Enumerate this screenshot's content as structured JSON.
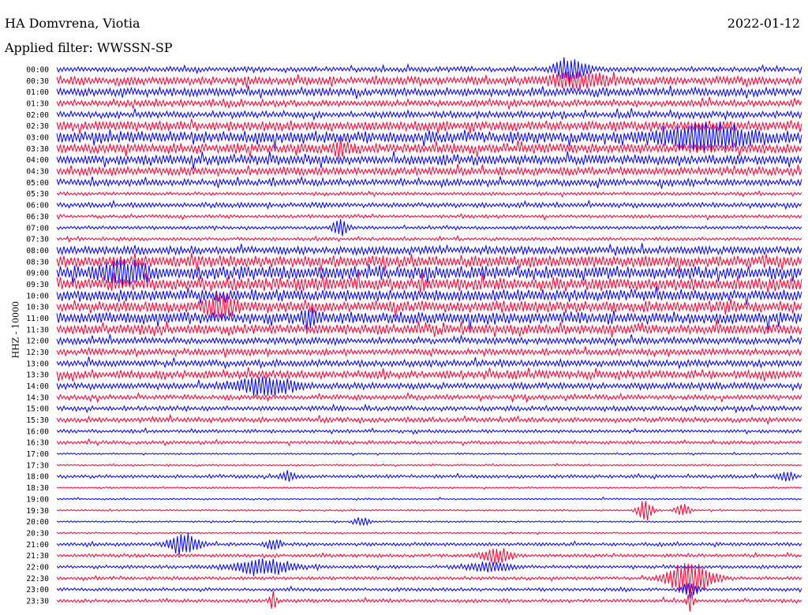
{
  "header": {
    "station": "HA Domvrena, Viotia",
    "date": "2022-01-12",
    "filter": "Applied filter: WWSSN-SP"
  },
  "chart_data": {
    "type": "line",
    "title": "",
    "ylabel": "HHZ - 10000",
    "row_labels": [
      "00:00",
      "00:30",
      "01:00",
      "01:30",
      "02:00",
      "02:30",
      "03:00",
      "03:30",
      "04:00",
      "04:30",
      "05:00",
      "05:30",
      "06:00",
      "06:30",
      "07:00",
      "07:30",
      "08:00",
      "08:30",
      "09:00",
      "09:30",
      "10:00",
      "10:30",
      "11:00",
      "11:30",
      "12:00",
      "12:30",
      "13:00",
      "13:30",
      "14:00",
      "14:30",
      "15:00",
      "15:30",
      "16:00",
      "16:30",
      "17:00",
      "17:30",
      "18:00",
      "18:30",
      "19:00",
      "19:30",
      "20:00",
      "20:30",
      "21:00",
      "21:30",
      "22:00",
      "22:30",
      "23:00",
      "23:30"
    ],
    "series_colors": [
      "#0000ff",
      "#ff0033"
    ],
    "row_amplitude": [
      3,
      5,
      5,
      4,
      4,
      6,
      7,
      6,
      6,
      5,
      4,
      2,
      3,
      2,
      2,
      2,
      5,
      7,
      8,
      8,
      7,
      7,
      7,
      6,
      4,
      4,
      4,
      5,
      4,
      3,
      3,
      3,
      2,
      2,
      1,
      1,
      2,
      1,
      1,
      1,
      1,
      1,
      2,
      2,
      2,
      2,
      2,
      2
    ],
    "events": [
      {
        "row": 0,
        "t": 0.69,
        "amp": 16,
        "width": 0.02
      },
      {
        "row": 1,
        "t": 0.7,
        "amp": 8,
        "width": 0.04
      },
      {
        "row": 6,
        "t": 0.87,
        "amp": 14,
        "width": 0.06
      },
      {
        "row": 7,
        "t": 0.38,
        "amp": 10,
        "width": 0.01
      },
      {
        "row": 14,
        "t": 0.38,
        "amp": 10,
        "width": 0.01
      },
      {
        "row": 18,
        "t": 0.09,
        "amp": 12,
        "width": 0.03
      },
      {
        "row": 21,
        "t": 0.22,
        "amp": 14,
        "width": 0.02
      },
      {
        "row": 22,
        "t": 0.34,
        "amp": 10,
        "width": 0.01
      },
      {
        "row": 28,
        "t": 0.28,
        "amp": 10,
        "width": 0.04
      },
      {
        "row": 36,
        "t": 0.31,
        "amp": 6,
        "width": 0.01
      },
      {
        "row": 36,
        "t": 0.98,
        "amp": 6,
        "width": 0.01
      },
      {
        "row": 39,
        "t": 0.79,
        "amp": 14,
        "width": 0.01
      },
      {
        "row": 39,
        "t": 0.84,
        "amp": 8,
        "width": 0.01
      },
      {
        "row": 40,
        "t": 0.41,
        "amp": 6,
        "width": 0.01
      },
      {
        "row": 42,
        "t": 0.17,
        "amp": 14,
        "width": 0.02
      },
      {
        "row": 42,
        "t": 0.29,
        "amp": 6,
        "width": 0.01
      },
      {
        "row": 43,
        "t": 0.59,
        "amp": 10,
        "width": 0.02
      },
      {
        "row": 44,
        "t": 0.28,
        "amp": 10,
        "width": 0.04
      },
      {
        "row": 44,
        "t": 0.58,
        "amp": 6,
        "width": 0.03
      },
      {
        "row": 45,
        "t": 0.85,
        "amp": 22,
        "width": 0.03
      },
      {
        "row": 46,
        "t": 0.85,
        "amp": 10,
        "width": 0.01
      },
      {
        "row": 47,
        "t": 0.29,
        "amp": 12,
        "width": 0.005
      },
      {
        "row": 47,
        "t": 0.85,
        "amp": 14,
        "width": 0.005
      }
    ]
  }
}
